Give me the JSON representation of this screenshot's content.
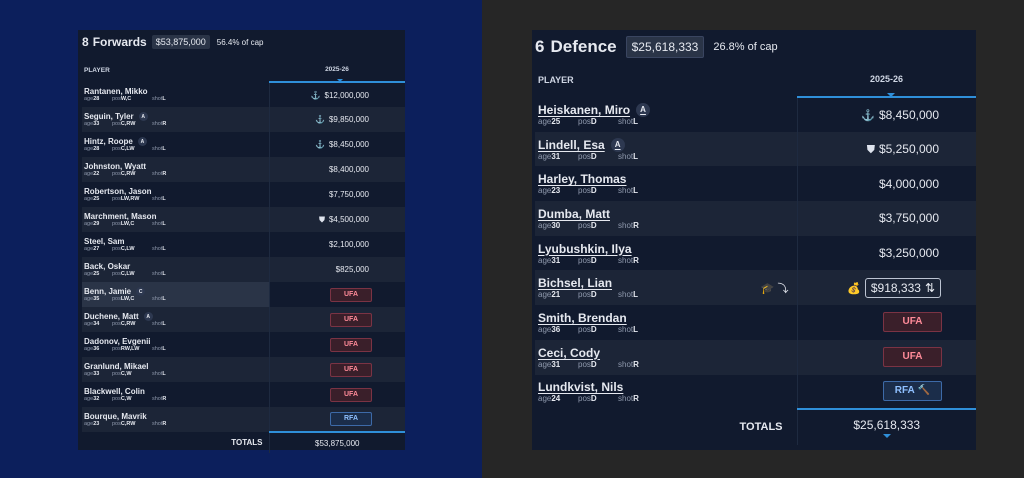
{
  "forwards": {
    "count": "8",
    "title": "Forwards",
    "cap_total": "$53,875,000",
    "cap_pct": "56.4% of cap",
    "col_player": "PLAYER",
    "col_season": "2025-26",
    "meta_labels": {
      "age": "age",
      "pos": "pos",
      "shot": "shot"
    },
    "rows": [
      {
        "name": "Rantanen, Mikko",
        "badge": "",
        "age": "28",
        "pos": "W,C",
        "shot": "L",
        "icon": "⚓",
        "icon_name": "anchor-icon",
        "salary": "$12,000,000",
        "status": ""
      },
      {
        "name": "Seguin, Tyler",
        "badge": "A",
        "age": "33",
        "pos": "C,RW",
        "shot": "R",
        "icon": "⚓",
        "icon_name": "anchor-icon",
        "salary": "$9,850,000",
        "status": ""
      },
      {
        "name": "Hintz, Roope",
        "badge": "A",
        "age": "28",
        "pos": "C,LW",
        "shot": "L",
        "icon": "⚓",
        "icon_name": "anchor-icon",
        "salary": "$8,450,000",
        "status": ""
      },
      {
        "name": "Johnston, Wyatt",
        "badge": "",
        "age": "22",
        "pos": "C,RW",
        "shot": "R",
        "icon": "",
        "icon_name": "",
        "salary": "$8,400,000",
        "status": ""
      },
      {
        "name": "Robertson, Jason",
        "badge": "",
        "age": "25",
        "pos": "LW,RW",
        "shot": "L",
        "icon": "",
        "icon_name": "",
        "salary": "$7,750,000",
        "status": ""
      },
      {
        "name": "Marchment, Mason",
        "badge": "",
        "age": "29",
        "pos": "LW,C",
        "shot": "L",
        "icon": "⛊",
        "icon_name": "shield-icon",
        "salary": "$4,500,000",
        "status": ""
      },
      {
        "name": "Steel, Sam",
        "badge": "",
        "age": "27",
        "pos": "C,LW",
        "shot": "L",
        "icon": "",
        "icon_name": "",
        "salary": "$2,100,000",
        "status": ""
      },
      {
        "name": "Back, Oskar",
        "badge": "",
        "age": "25",
        "pos": "C,LW",
        "shot": "L",
        "icon": "",
        "icon_name": "",
        "salary": "$825,000",
        "status": ""
      },
      {
        "name": "Benn, Jamie",
        "badge": "C",
        "age": "35",
        "pos": "LW,C",
        "shot": "L",
        "icon": "",
        "icon_name": "",
        "salary": "",
        "status": "UFA"
      },
      {
        "name": "Duchene, Matt",
        "badge": "A",
        "age": "34",
        "pos": "C,RW",
        "shot": "L",
        "icon": "",
        "icon_name": "",
        "salary": "",
        "status": "UFA"
      },
      {
        "name": "Dadonov, Evgenii",
        "badge": "",
        "age": "36",
        "pos": "RW,LW",
        "shot": "L",
        "icon": "",
        "icon_name": "",
        "salary": "",
        "status": "UFA"
      },
      {
        "name": "Granlund, Mikael",
        "badge": "",
        "age": "33",
        "pos": "C,W",
        "shot": "L",
        "icon": "",
        "icon_name": "",
        "salary": "",
        "status": "UFA"
      },
      {
        "name": "Blackwell, Colin",
        "badge": "",
        "age": "32",
        "pos": "C,W",
        "shot": "R",
        "icon": "",
        "icon_name": "",
        "salary": "",
        "status": "UFA"
      },
      {
        "name": "Bourque, Mavrik",
        "badge": "",
        "age": "23",
        "pos": "C,RW",
        "shot": "R",
        "icon": "",
        "icon_name": "",
        "salary": "",
        "status": "RFA"
      }
    ],
    "totals_label": "TOTALS",
    "totals_value": "$53,875,000"
  },
  "defence": {
    "count": "6",
    "title": "Defence",
    "cap_total": "$25,618,333",
    "cap_pct": "26.8% of cap",
    "col_player": "PLAYER",
    "col_season": "2025-26",
    "meta_labels": {
      "age": "age",
      "pos": "pos",
      "shot": "shot"
    },
    "rows": [
      {
        "name": "Heiskanen, Miro",
        "badge": "A",
        "age": "25",
        "pos": "D",
        "shot": "L",
        "icon": "⚓",
        "icon_name": "anchor-icon",
        "salary": "$8,450,000",
        "status": ""
      },
      {
        "name": "Lindell, Esa",
        "badge": "A",
        "age": "31",
        "pos": "D",
        "shot": "L",
        "icon": "⛊",
        "icon_name": "shield-icon",
        "salary": "$5,250,000",
        "status": ""
      },
      {
        "name": "Harley, Thomas",
        "badge": "",
        "age": "23",
        "pos": "D",
        "shot": "L",
        "icon": "",
        "icon_name": "",
        "salary": "$4,000,000",
        "status": ""
      },
      {
        "name": "Dumba, Matt",
        "badge": "",
        "age": "30",
        "pos": "D",
        "shot": "R",
        "icon": "",
        "icon_name": "",
        "salary": "$3,750,000",
        "status": ""
      },
      {
        "name": "Lyubushkin, Ilya",
        "badge": "",
        "age": "31",
        "pos": "D",
        "shot": "R",
        "icon": "",
        "icon_name": "",
        "salary": "$3,250,000",
        "status": ""
      },
      {
        "name": "Bichsel, Lian",
        "badge": "",
        "age": "21",
        "pos": "D",
        "shot": "L",
        "icon": "💰",
        "icon_name": "money-bag-icon",
        "salary": "$918,333",
        "status": "",
        "boxed": true,
        "tools": "🎓 ⤵",
        "box_icon": "⇅"
      },
      {
        "name": "Smith, Brendan",
        "badge": "",
        "age": "36",
        "pos": "D",
        "shot": "L",
        "icon": "",
        "icon_name": "",
        "salary": "",
        "status": "UFA"
      },
      {
        "name": "Ceci, Cody",
        "badge": "",
        "age": "31",
        "pos": "D",
        "shot": "R",
        "icon": "",
        "icon_name": "",
        "salary": "",
        "status": "UFA"
      },
      {
        "name": "Lundkvist, Nils",
        "badge": "",
        "age": "24",
        "pos": "D",
        "shot": "R",
        "icon": "",
        "icon_name": "",
        "salary": "",
        "status": "RFA",
        "status_icon": "🔨"
      }
    ],
    "totals_label": "TOTALS",
    "totals_value": "$25,618,333"
  }
}
